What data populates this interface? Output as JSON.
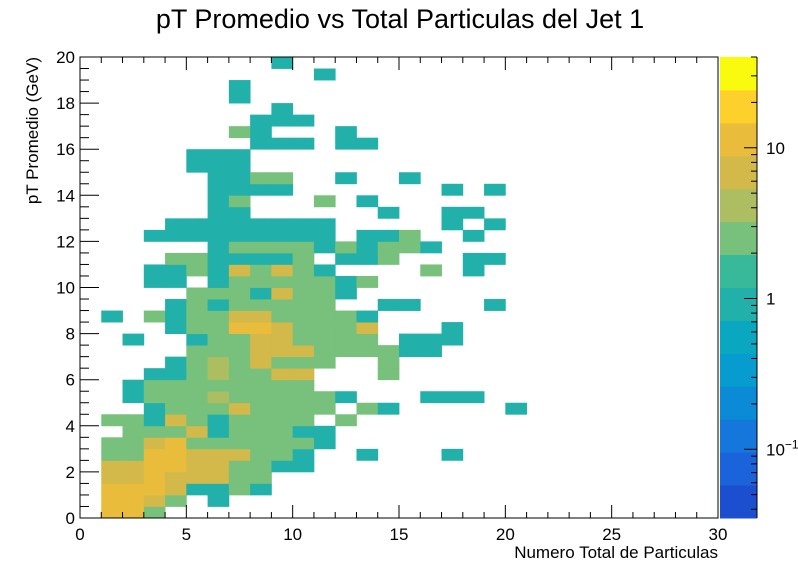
{
  "chart_data": {
    "type": "heatmap",
    "title": "pT Promedio vs Total Particulas del Jet 1",
    "xlabel": "Numero Total de Particulas",
    "ylabel": "pT Promedio (GeV)",
    "xlim": [
      0,
      30
    ],
    "ylim": [
      0,
      20
    ],
    "x_bin_width": 1,
    "y_bin_width": 0.5,
    "x_ticks": [
      "0",
      "5",
      "10",
      "15",
      "20",
      "25",
      "30"
    ],
    "y_ticks": [
      "0",
      "2",
      "4",
      "6",
      "8",
      "10",
      "12",
      "14",
      "16",
      "18",
      "20"
    ],
    "colorbar": {
      "scale": "log",
      "range": [
        0.035,
        40
      ],
      "tick_labels": [
        {
          "value": 0.1,
          "label": "10",
          "exponent": "−1"
        },
        {
          "value": 1,
          "label": "1",
          "exponent": ""
        },
        {
          "value": 10,
          "label": "10",
          "exponent": ""
        }
      ],
      "colors": [
        "#1b4fcf",
        "#1a63da",
        "#1577dc",
        "#0b8ad6",
        "#079ccf",
        "#0aa8c0",
        "#22b1aa",
        "#38b99a",
        "#77c17c",
        "#adbd62",
        "#d3b84a",
        "#e9bd3b",
        "#fdd02b",
        "#fafa0e"
      ]
    },
    "grid": false,
    "cells": [
      [
        1,
        0,
        13
      ],
      [
        1,
        0.5,
        13
      ],
      [
        1,
        1,
        13
      ],
      [
        1,
        1.5,
        8
      ],
      [
        1,
        2,
        6
      ],
      [
        1,
        2.5,
        2
      ],
      [
        1,
        3,
        2
      ],
      [
        1,
        4,
        2
      ],
      [
        1,
        8.5,
        1
      ],
      [
        2,
        0,
        13
      ],
      [
        2,
        0.5,
        13
      ],
      [
        2,
        1,
        13
      ],
      [
        2,
        1.5,
        8
      ],
      [
        2,
        2,
        6
      ],
      [
        2,
        2.5,
        3
      ],
      [
        2,
        3,
        2
      ],
      [
        2,
        3.5,
        2
      ],
      [
        2,
        4,
        2
      ],
      [
        2,
        5,
        1
      ],
      [
        2,
        5.5,
        1
      ],
      [
        2,
        7.5,
        1
      ],
      [
        3,
        0,
        3
      ],
      [
        3,
        0.5,
        6
      ],
      [
        3,
        1,
        12
      ],
      [
        3,
        1.5,
        9
      ],
      [
        3,
        2,
        9
      ],
      [
        3,
        2.5,
        9
      ],
      [
        3,
        3,
        7
      ],
      [
        3,
        3.5,
        2
      ],
      [
        3,
        4,
        1
      ],
      [
        3,
        4.5,
        1
      ],
      [
        3,
        5,
        2
      ],
      [
        3,
        5.5,
        2
      ],
      [
        3,
        6,
        1
      ],
      [
        3,
        8.5,
        2
      ],
      [
        3,
        10,
        1
      ],
      [
        3,
        10.5,
        1
      ],
      [
        3,
        12,
        1
      ],
      [
        4,
        0.5,
        2
      ],
      [
        4,
        1,
        6
      ],
      [
        4,
        1.5,
        8
      ],
      [
        4,
        2,
        9
      ],
      [
        4,
        2.5,
        9
      ],
      [
        4,
        3,
        9
      ],
      [
        4,
        3.5,
        3
      ],
      [
        4,
        4,
        7
      ],
      [
        4,
        4.5,
        2
      ],
      [
        4,
        5,
        2
      ],
      [
        4,
        5.5,
        3
      ],
      [
        4,
        6,
        1
      ],
      [
        4,
        6.5,
        1
      ],
      [
        4,
        8,
        1
      ],
      [
        4,
        8.5,
        1
      ],
      [
        4,
        9,
        1
      ],
      [
        4,
        10,
        1
      ],
      [
        4,
        10.5,
        1
      ],
      [
        4,
        11,
        2
      ],
      [
        4,
        12,
        1
      ],
      [
        4,
        12.5,
        1
      ],
      [
        5,
        1,
        1
      ],
      [
        5,
        1.5,
        6
      ],
      [
        5,
        2,
        6
      ],
      [
        5,
        2.5,
        6
      ],
      [
        5,
        3,
        3
      ],
      [
        5,
        3.5,
        6
      ],
      [
        5,
        4,
        2
      ],
      [
        5,
        4.5,
        3
      ],
      [
        5,
        5,
        3
      ],
      [
        5,
        5.5,
        2
      ],
      [
        5,
        6,
        3
      ],
      [
        5,
        6.5,
        2
      ],
      [
        5,
        7,
        2
      ],
      [
        5,
        7.5,
        1
      ],
      [
        5,
        8,
        3
      ],
      [
        5,
        8.5,
        2
      ],
      [
        5,
        9,
        3
      ],
      [
        5,
        9.5,
        3
      ],
      [
        5,
        10.5,
        2
      ],
      [
        5,
        11,
        3
      ],
      [
        5,
        12,
        1
      ],
      [
        5,
        12.5,
        1
      ],
      [
        5,
        15,
        1
      ],
      [
        5,
        15.5,
        1
      ],
      [
        6,
        0.5,
        1
      ],
      [
        6,
        1,
        1
      ],
      [
        6,
        1.5,
        6
      ],
      [
        6,
        2,
        6
      ],
      [
        6,
        2.5,
        6
      ],
      [
        6,
        3,
        3
      ],
      [
        6,
        3.5,
        1
      ],
      [
        6,
        4,
        1
      ],
      [
        6,
        4.5,
        3
      ],
      [
        6,
        5,
        5
      ],
      [
        6,
        5.5,
        3
      ],
      [
        6,
        6,
        5
      ],
      [
        6,
        6.5,
        5
      ],
      [
        6,
        7,
        3
      ],
      [
        6,
        7.5,
        3
      ],
      [
        6,
        8,
        2
      ],
      [
        6,
        8.5,
        2
      ],
      [
        6,
        9,
        1
      ],
      [
        6,
        9.5,
        3
      ],
      [
        6,
        10,
        1
      ],
      [
        6,
        10.5,
        1
      ],
      [
        6,
        11,
        1
      ],
      [
        6,
        11.5,
        1
      ],
      [
        6,
        12,
        1
      ],
      [
        6,
        12.5,
        1
      ],
      [
        6,
        13,
        1
      ],
      [
        6,
        13.5,
        1
      ],
      [
        6,
        14,
        1
      ],
      [
        6,
        14.5,
        1
      ],
      [
        6,
        15,
        1
      ],
      [
        6,
        15.5,
        1
      ],
      [
        7,
        1,
        2
      ],
      [
        7,
        1.5,
        2
      ],
      [
        7,
        2,
        3
      ],
      [
        7,
        2.5,
        6
      ],
      [
        7,
        3,
        2
      ],
      [
        7,
        3.5,
        2
      ],
      [
        7,
        4,
        3
      ],
      [
        7,
        4.5,
        6
      ],
      [
        7,
        5,
        3
      ],
      [
        7,
        5.5,
        3
      ],
      [
        7,
        6,
        3
      ],
      [
        7,
        6.5,
        2
      ],
      [
        7,
        7,
        3
      ],
      [
        7,
        7.5,
        3
      ],
      [
        7,
        8,
        10
      ],
      [
        7,
        8.5,
        6
      ],
      [
        7,
        9,
        3
      ],
      [
        7,
        9.5,
        2
      ],
      [
        7,
        10,
        2
      ],
      [
        7,
        10.5,
        6
      ],
      [
        7,
        11,
        1
      ],
      [
        7,
        11.5,
        2
      ],
      [
        7,
        12,
        1
      ],
      [
        7,
        12.5,
        1
      ],
      [
        7,
        13,
        1
      ],
      [
        7,
        13.5,
        2
      ],
      [
        7,
        14,
        1
      ],
      [
        7,
        14.5,
        1
      ],
      [
        7,
        15,
        1
      ],
      [
        7,
        15.5,
        1
      ],
      [
        7,
        16.5,
        2
      ],
      [
        7,
        18,
        1
      ],
      [
        7,
        18.5,
        1
      ],
      [
        8,
        1,
        1
      ],
      [
        8,
        1.5,
        2
      ],
      [
        8,
        2,
        3
      ],
      [
        8,
        2.5,
        3
      ],
      [
        8,
        3,
        2
      ],
      [
        8,
        3.5,
        2
      ],
      [
        8,
        4,
        2
      ],
      [
        8,
        4.5,
        3
      ],
      [
        8,
        5,
        2
      ],
      [
        8,
        5.5,
        2
      ],
      [
        8,
        6,
        3
      ],
      [
        8,
        6.5,
        6
      ],
      [
        8,
        7,
        6
      ],
      [
        8,
        7.5,
        6
      ],
      [
        8,
        8,
        10
      ],
      [
        8,
        8.5,
        6
      ],
      [
        8,
        9,
        2
      ],
      [
        8,
        9.5,
        1
      ],
      [
        8,
        10,
        2
      ],
      [
        8,
        10.5,
        2
      ],
      [
        8,
        11,
        1
      ],
      [
        8,
        11.5,
        3
      ],
      [
        8,
        12,
        1
      ],
      [
        8,
        12.5,
        1
      ],
      [
        8,
        14,
        1
      ],
      [
        8,
        14.5,
        3
      ],
      [
        8,
        16,
        1
      ],
      [
        8,
        16.5,
        1
      ],
      [
        8,
        17,
        1
      ],
      [
        9,
        2,
        1
      ],
      [
        9,
        2.5,
        3
      ],
      [
        9,
        3,
        3
      ],
      [
        9,
        3.5,
        2
      ],
      [
        9,
        4,
        2
      ],
      [
        9,
        4.5,
        3
      ],
      [
        9,
        5,
        3
      ],
      [
        9,
        5.5,
        3
      ],
      [
        9,
        6,
        6
      ],
      [
        9,
        6.5,
        3
      ],
      [
        9,
        7,
        6
      ],
      [
        9,
        7.5,
        6
      ],
      [
        9,
        8,
        6
      ],
      [
        9,
        8.5,
        3
      ],
      [
        9,
        9,
        3
      ],
      [
        9,
        9.5,
        6
      ],
      [
        9,
        10,
        3
      ],
      [
        9,
        10.5,
        6
      ],
      [
        9,
        11,
        1
      ],
      [
        9,
        11.5,
        2
      ],
      [
        9,
        12,
        1
      ],
      [
        9,
        12.5,
        1
      ],
      [
        9,
        14,
        1
      ],
      [
        9,
        14.5,
        2
      ],
      [
        9,
        16,
        1
      ],
      [
        9,
        17,
        1
      ],
      [
        9,
        17.5,
        1
      ],
      [
        9,
        19.5,
        1
      ],
      [
        10,
        2,
        1
      ],
      [
        10,
        2.5,
        1
      ],
      [
        10,
        3,
        3
      ],
      [
        10,
        3.5,
        1
      ],
      [
        10,
        4,
        2
      ],
      [
        10,
        4.5,
        2
      ],
      [
        10,
        5,
        3
      ],
      [
        10,
        5.5,
        3
      ],
      [
        10,
        6,
        6
      ],
      [
        10,
        6.5,
        3
      ],
      [
        10,
        7,
        6
      ],
      [
        10,
        7.5,
        3
      ],
      [
        10,
        8,
        3
      ],
      [
        10,
        8.5,
        3
      ],
      [
        10,
        9,
        3
      ],
      [
        10,
        9.5,
        2
      ],
      [
        10,
        10,
        3
      ],
      [
        10,
        10.5,
        2
      ],
      [
        10,
        11,
        2
      ],
      [
        10,
        11.5,
        3
      ],
      [
        10,
        12,
        1
      ],
      [
        10,
        12.5,
        1
      ],
      [
        10,
        16,
        1
      ],
      [
        10,
        17,
        1
      ],
      [
        11,
        3,
        1
      ],
      [
        11,
        3.5,
        1
      ],
      [
        11,
        4.5,
        3
      ],
      [
        11,
        5,
        3
      ],
      [
        11,
        6.5,
        2
      ],
      [
        11,
        7,
        2
      ],
      [
        11,
        7.5,
        3
      ],
      [
        11,
        8,
        2
      ],
      [
        11,
        8.5,
        3
      ],
      [
        11,
        9,
        2
      ],
      [
        11,
        9.5,
        2
      ],
      [
        11,
        10,
        2
      ],
      [
        11,
        10.5,
        1
      ],
      [
        11,
        11.5,
        1
      ],
      [
        11,
        12,
        1
      ],
      [
        11,
        12.5,
        1
      ],
      [
        11,
        13.5,
        2
      ],
      [
        11,
        19,
        1
      ],
      [
        12,
        4,
        3
      ],
      [
        12,
        5,
        1
      ],
      [
        12,
        7,
        2
      ],
      [
        12,
        7.5,
        3
      ],
      [
        12,
        8,
        3
      ],
      [
        12,
        8.5,
        2
      ],
      [
        12,
        9.5,
        1
      ],
      [
        12,
        10,
        1
      ],
      [
        12,
        11,
        1
      ],
      [
        12,
        11.5,
        2
      ],
      [
        12,
        14.5,
        1
      ],
      [
        12,
        16,
        1
      ],
      [
        12,
        16.5,
        1
      ],
      [
        13,
        2.5,
        1
      ],
      [
        13,
        4.5,
        2
      ],
      [
        13,
        7,
        3
      ],
      [
        13,
        7.5,
        2
      ],
      [
        13,
        8,
        6
      ],
      [
        13,
        8.5,
        1
      ],
      [
        13,
        10,
        2
      ],
      [
        13,
        11,
        1
      ],
      [
        13,
        11.5,
        1
      ],
      [
        13,
        12,
        1
      ],
      [
        13,
        13.5,
        1
      ],
      [
        13,
        16,
        1
      ],
      [
        14,
        4.5,
        1
      ],
      [
        14,
        6,
        2
      ],
      [
        14,
        6.5,
        2
      ],
      [
        14,
        7,
        2
      ],
      [
        14,
        9,
        1
      ],
      [
        14,
        11,
        2
      ],
      [
        14,
        11.5,
        2
      ],
      [
        14,
        12,
        1
      ],
      [
        14,
        13,
        1
      ],
      [
        15,
        7,
        1
      ],
      [
        15,
        7.5,
        1
      ],
      [
        15,
        9,
        1
      ],
      [
        15,
        11.5,
        3
      ],
      [
        15,
        12,
        2
      ],
      [
        15,
        14.5,
        1
      ],
      [
        16,
        5,
        1
      ],
      [
        16,
        7,
        1
      ],
      [
        16,
        7.5,
        1
      ],
      [
        16,
        10.5,
        2
      ],
      [
        16,
        11.5,
        1
      ],
      [
        17,
        2.5,
        1
      ],
      [
        17,
        5,
        1
      ],
      [
        17,
        7.5,
        1
      ],
      [
        17,
        8,
        1
      ],
      [
        17,
        12.5,
        1
      ],
      [
        17,
        13,
        1
      ],
      [
        17,
        14,
        1
      ],
      [
        18,
        5,
        1
      ],
      [
        18,
        10.5,
        1
      ],
      [
        18,
        11,
        1
      ],
      [
        18,
        12,
        1
      ],
      [
        18,
        13,
        1
      ],
      [
        19,
        9,
        1
      ],
      [
        19,
        11,
        1
      ],
      [
        19,
        12.5,
        1
      ],
      [
        19,
        14,
        1
      ],
      [
        20,
        4.5,
        1
      ]
    ]
  }
}
